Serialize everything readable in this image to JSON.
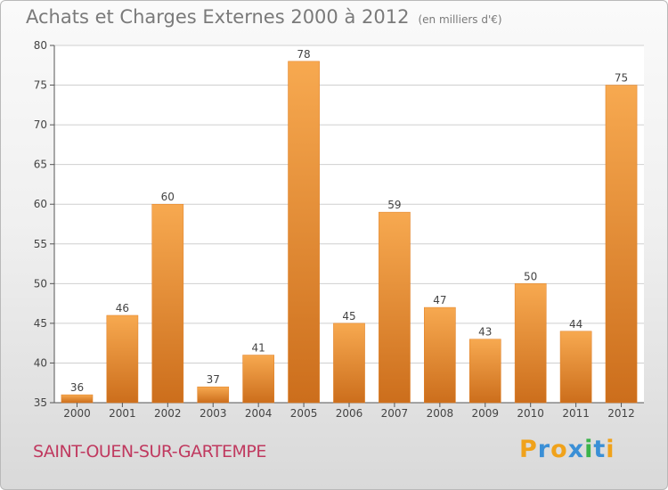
{
  "title": "Achats et Charges Externes 2000 à 2012",
  "unit": "(en milliers d'€)",
  "commune": "SAINT-OUEN-SUR-GARTEMPE",
  "logo": [
    "P",
    "r",
    "o",
    "x",
    "i",
    "t",
    "i"
  ],
  "colors": {
    "bar_light": "#f7a950",
    "bar_dark": "#cc6e1c",
    "grid": "#cfcfcf",
    "axis": "#555555"
  },
  "chart_data": {
    "type": "bar",
    "categories": [
      "2000",
      "2001",
      "2002",
      "2003",
      "2004",
      "2005",
      "2006",
      "2007",
      "2008",
      "2009",
      "2010",
      "2011",
      "2012"
    ],
    "values": [
      36,
      46,
      60,
      37,
      41,
      78,
      45,
      59,
      47,
      43,
      50,
      44,
      75
    ],
    "ylim": [
      35,
      80
    ],
    "yticks": [
      35,
      40,
      45,
      50,
      55,
      60,
      65,
      70,
      75,
      80
    ],
    "grid": true
  }
}
